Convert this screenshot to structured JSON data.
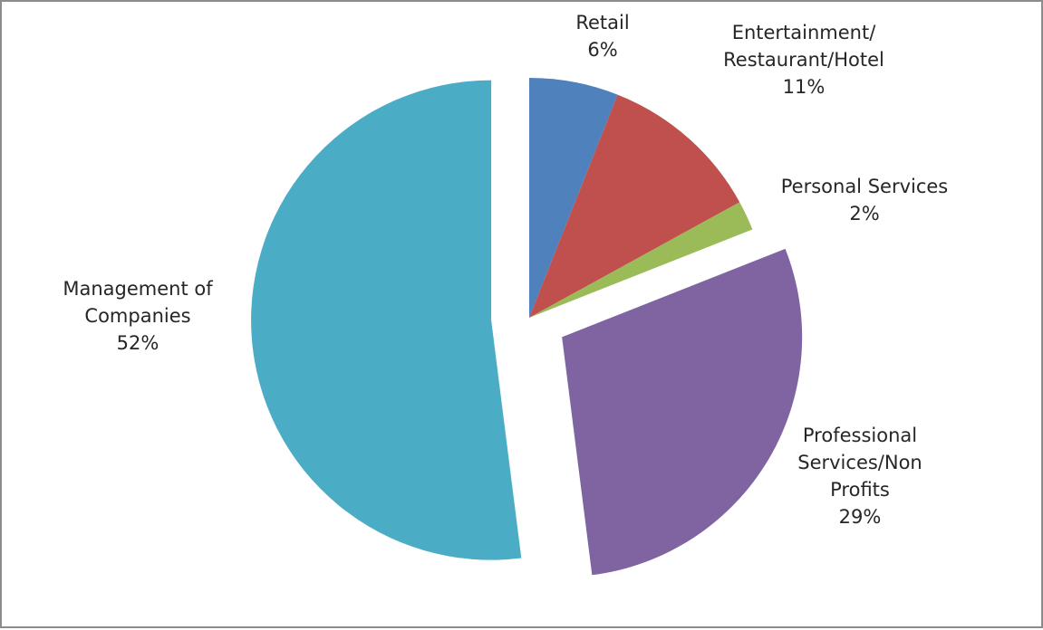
{
  "chart_data": {
    "type": "pie",
    "categories": [
      "Retail",
      "Entertainment/ Restaurant/Hotel",
      "Personal Services",
      "Professional Services/Non Profits",
      "Management of Companies"
    ],
    "values": [
      6,
      11,
      2,
      29,
      52
    ],
    "value_labels": [
      "6%",
      "11%",
      "2%",
      "29%",
      "52%"
    ],
    "label_lines": [
      [
        "Retail",
        "6%"
      ],
      [
        "Entertainment/",
        "Restaurant/Hotel",
        "11%"
      ],
      [
        "Personal Services",
        "2%"
      ],
      [
        "Professional",
        "Services/Non",
        "Profits",
        "29%"
      ],
      [
        "Management of",
        "Companies",
        "52%"
      ]
    ],
    "colors": [
      "#4f81bd",
      "#c0504d",
      "#9bbb59",
      "#8064a2",
      "#4bacc6"
    ],
    "exploded": [
      false,
      false,
      false,
      true,
      true
    ],
    "start_angle": "12 o'clock",
    "direction": "clockwise",
    "legend": "none",
    "title": ""
  }
}
